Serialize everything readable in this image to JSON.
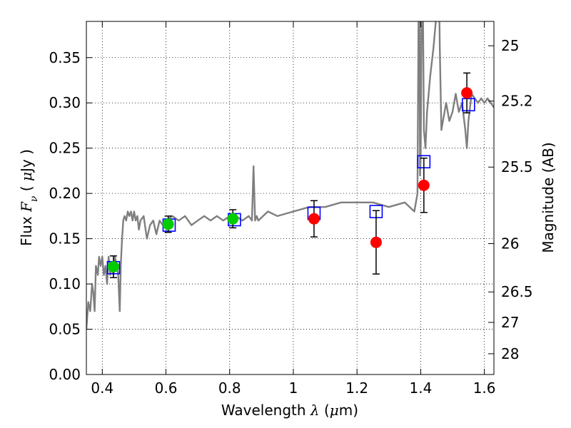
{
  "chart_data": {
    "type": "scatter",
    "title": "",
    "xlabel": {
      "text": "Wavelength",
      "symbol": "λ",
      "unit_open": " (",
      "unit_mu": "μ",
      "unit_rest": "m)"
    },
    "ylabel": {
      "text": "Flux",
      "symbol": "F",
      "sub": "ν",
      "unit_open": " ( ",
      "unit_mu": "μ",
      "unit_rest": "Jy )"
    },
    "y2label": "Magnitude (AB)",
    "xlim": [
      0.35,
      1.63
    ],
    "ylim": [
      0.0,
      0.39
    ],
    "grid": true,
    "x_ticks": [
      {
        "v": 0.4,
        "t": "0.4"
      },
      {
        "v": 0.6,
        "t": "0.6"
      },
      {
        "v": 0.8,
        "t": "0.8"
      },
      {
        "v": 1.0,
        "t": "1"
      },
      {
        "v": 1.2,
        "t": "1.2"
      },
      {
        "v": 1.4,
        "t": "1.4"
      },
      {
        "v": 1.6,
        "t": "1.6"
      }
    ],
    "y_ticks": [
      {
        "v": 0.0,
        "t": "0.00"
      },
      {
        "v": 0.05,
        "t": "0.05"
      },
      {
        "v": 0.1,
        "t": "0.10"
      },
      {
        "v": 0.15,
        "t": "0.15"
      },
      {
        "v": 0.2,
        "t": "0.20"
      },
      {
        "v": 0.25,
        "t": "0.25"
      },
      {
        "v": 0.3,
        "t": "0.30"
      },
      {
        "v": 0.35,
        "t": "0.35"
      }
    ],
    "y2_ticks": [
      {
        "mag": 25,
        "t": "25"
      },
      {
        "mag": 25.2,
        "t": "25.2"
      },
      {
        "mag": 25.5,
        "t": "25.5"
      },
      {
        "mag": 26,
        "t": "26"
      },
      {
        "mag": 26.5,
        "t": "26.5"
      },
      {
        "mag": 27,
        "t": "27"
      },
      {
        "mag": 28,
        "t": "28"
      }
    ],
    "series": [
      {
        "kind": "spectrum",
        "color": "#7f7f7f",
        "x": [
          0.35,
          0.356,
          0.362,
          0.368,
          0.372,
          0.376,
          0.38,
          0.386,
          0.39,
          0.395,
          0.4,
          0.405,
          0.41,
          0.415,
          0.42,
          0.425,
          0.43,
          0.435,
          0.44,
          0.445,
          0.45,
          0.455,
          0.458,
          0.462,
          0.466,
          0.47,
          0.475,
          0.48,
          0.485,
          0.49,
          0.495,
          0.5,
          0.505,
          0.51,
          0.515,
          0.52,
          0.53,
          0.54,
          0.55,
          0.56,
          0.57,
          0.58,
          0.59,
          0.6,
          0.62,
          0.64,
          0.66,
          0.68,
          0.7,
          0.72,
          0.74,
          0.76,
          0.78,
          0.8,
          0.82,
          0.84,
          0.86,
          0.87,
          0.875,
          0.88,
          0.885,
          0.89,
          0.92,
          0.95,
          1.0,
          1.05,
          1.1,
          1.15,
          1.2,
          1.25,
          1.3,
          1.35,
          1.38,
          1.39,
          1.395,
          1.398,
          1.4,
          1.405,
          1.41,
          1.415,
          1.42,
          1.43,
          1.44,
          1.45,
          1.455,
          1.46,
          1.465,
          1.47,
          1.48,
          1.49,
          1.5,
          1.51,
          1.52,
          1.53,
          1.54,
          1.545,
          1.55,
          1.555,
          1.56,
          1.57,
          1.58,
          1.59,
          1.6,
          1.61,
          1.62,
          1.63
        ],
        "y": [
          0.05,
          0.08,
          0.07,
          0.1,
          0.09,
          0.07,
          0.12,
          0.11,
          0.13,
          0.12,
          0.13,
          0.11,
          0.12,
          0.1,
          0.13,
          0.11,
          0.12,
          0.11,
          0.13,
          0.12,
          0.11,
          0.07,
          0.12,
          0.15,
          0.17,
          0.175,
          0.17,
          0.18,
          0.175,
          0.18,
          0.17,
          0.18,
          0.17,
          0.175,
          0.16,
          0.17,
          0.175,
          0.15,
          0.165,
          0.17,
          0.155,
          0.17,
          0.165,
          0.17,
          0.175,
          0.17,
          0.175,
          0.165,
          0.17,
          0.175,
          0.17,
          0.175,
          0.17,
          0.175,
          0.175,
          0.17,
          0.175,
          0.17,
          0.23,
          0.17,
          0.175,
          0.17,
          0.18,
          0.175,
          0.18,
          0.185,
          0.185,
          0.19,
          0.19,
          0.19,
          0.185,
          0.19,
          0.18,
          0.2,
          0.5,
          0.22,
          0.24,
          0.5,
          0.27,
          0.25,
          0.29,
          0.33,
          0.36,
          0.4,
          0.5,
          0.36,
          0.27,
          0.28,
          0.3,
          0.28,
          0.29,
          0.31,
          0.29,
          0.3,
          0.27,
          0.25,
          0.28,
          0.295,
          0.31,
          0.305,
          0.3,
          0.305,
          0.3,
          0.305,
          0.3,
          0.295
        ]
      },
      {
        "kind": "model-boxes",
        "color": "#0000ff",
        "x": [
          0.435,
          0.61,
          0.815,
          1.065,
          1.26,
          1.41,
          1.55
        ],
        "y": [
          0.118,
          0.165,
          0.171,
          0.178,
          0.18,
          0.235,
          0.298
        ]
      },
      {
        "kind": "green-points",
        "color": "#00cc00",
        "x": [
          0.435,
          0.607,
          0.81
        ],
        "y": [
          0.119,
          0.166,
          0.172
        ],
        "yerr": [
          0.012,
          0.009,
          0.01
        ]
      },
      {
        "kind": "red-points",
        "color": "#ff0000",
        "x": [
          1.065,
          1.26,
          1.41,
          1.545
        ],
        "y": [
          0.172,
          0.146,
          0.209,
          0.311
        ],
        "yerr": [
          0.02,
          0.035,
          0.03,
          0.022
        ]
      }
    ]
  }
}
